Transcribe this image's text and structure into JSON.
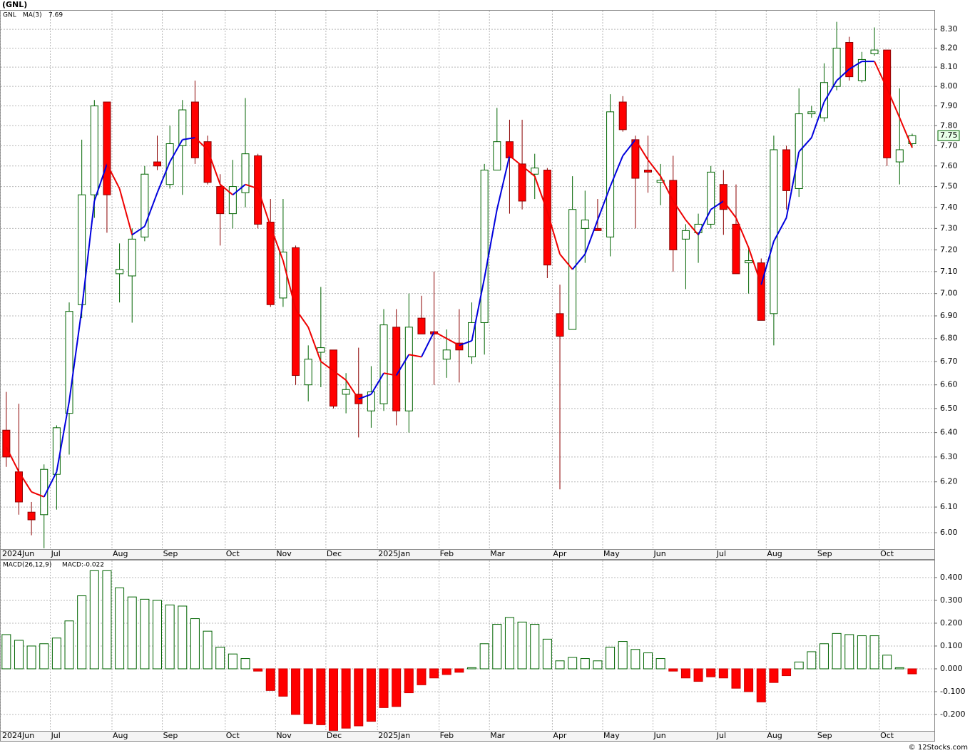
{
  "header": {
    "title": "(GNL)",
    "footer": "© 12Stocks.com"
  },
  "chart_data": [
    {
      "type": "candlestick",
      "symbol": "GNL",
      "log_scale": true,
      "grid": true,
      "up_color": "#006400",
      "down_color": "#ff0000",
      "open": [
        6.41,
        6.24,
        6.08,
        6.07,
        6.23,
        6.48,
        6.95,
        7.46,
        7.92,
        7.09,
        7.08,
        7.26,
        7.62,
        7.51,
        7.7,
        7.92,
        7.72,
        7.5,
        7.37,
        7.47,
        7.65,
        7.33,
        6.98,
        7.21,
        6.6,
        6.74,
        6.75,
        6.56,
        6.56,
        6.49,
        6.52,
        6.85,
        6.49,
        6.89,
        6.83,
        6.71,
        6.78,
        6.72,
        6.87,
        7.58,
        7.72,
        7.61,
        7.56,
        7.58,
        6.91,
        6.84,
        7.3,
        7.3,
        7.26,
        7.92,
        7.73,
        7.58,
        7.52,
        7.53,
        7.25,
        7.28,
        7.32,
        7.51,
        7.32,
        7.14,
        7.14,
        6.91,
        7.68,
        7.49,
        7.86,
        7.84,
        8.0,
        8.23,
        8.03,
        8.17,
        8.19,
        7.62,
        7.71
      ],
      "high": [
        6.57,
        6.52,
        6.12,
        6.27,
        6.43,
        6.96,
        7.73,
        7.93,
        7.92,
        7.23,
        7.3,
        7.6,
        7.75,
        7.8,
        7.93,
        8.03,
        7.75,
        7.56,
        7.63,
        7.94,
        7.66,
        7.44,
        7.44,
        7.22,
        6.77,
        7.03,
        6.75,
        6.65,
        6.76,
        6.68,
        6.93,
        6.93,
        7.0,
        6.99,
        7.1,
        6.84,
        6.93,
        6.96,
        7.61,
        7.89,
        7.83,
        7.83,
        7.66,
        7.59,
        7.04,
        7.55,
        7.48,
        7.44,
        7.96,
        7.95,
        7.75,
        7.75,
        7.61,
        7.65,
        7.32,
        7.37,
        7.6,
        7.58,
        7.51,
        7.21,
        7.16,
        7.75,
        7.7,
        7.99,
        7.9,
        8.12,
        8.34,
        8.26,
        8.18,
        8.31,
        8.19,
        7.99,
        7.76
      ],
      "low": [
        6.26,
        6.07,
        5.99,
        5.94,
        6.09,
        6.31,
        6.89,
        7.35,
        7.28,
        6.96,
        6.87,
        7.24,
        7.58,
        7.49,
        7.46,
        7.61,
        7.51,
        7.22,
        7.3,
        7.4,
        7.3,
        6.94,
        6.94,
        6.6,
        6.53,
        6.59,
        6.5,
        6.48,
        6.38,
        6.42,
        6.49,
        6.43,
        6.4,
        6.82,
        6.6,
        6.63,
        6.61,
        6.69,
        6.73,
        7.58,
        7.37,
        7.39,
        7.44,
        7.07,
        6.17,
        6.84,
        7.14,
        7.29,
        7.17,
        7.77,
        7.3,
        7.47,
        7.41,
        7.1,
        7.02,
        7.14,
        7.3,
        7.27,
        7.09,
        7.0,
        6.88,
        6.77,
        7.39,
        7.45,
        7.84,
        7.82,
        7.98,
        8.03,
        8.02,
        8.16,
        7.6,
        7.51,
        7.69
      ],
      "close": [
        6.3,
        6.12,
        6.05,
        6.25,
        6.42,
        6.92,
        7.46,
        7.9,
        7.46,
        7.11,
        7.25,
        7.56,
        7.6,
        7.71,
        7.88,
        7.64,
        7.52,
        7.37,
        7.5,
        7.66,
        7.32,
        6.95,
        7.19,
        6.64,
        6.71,
        6.76,
        6.51,
        6.58,
        6.52,
        6.57,
        6.86,
        6.49,
        6.85,
        6.82,
        6.82,
        6.75,
        6.75,
        6.87,
        7.58,
        7.72,
        7.64,
        7.43,
        7.59,
        7.13,
        6.81,
        7.39,
        7.34,
        7.29,
        7.87,
        7.78,
        7.54,
        7.57,
        7.53,
        7.2,
        7.29,
        7.32,
        7.57,
        7.39,
        7.09,
        7.15,
        6.88,
        7.68,
        7.48,
        7.86,
        7.87,
        8.02,
        8.2,
        8.05,
        8.14,
        8.19,
        7.64,
        7.68,
        7.75
      ],
      "ma": {
        "name": "MA(3)",
        "up_color": "#0000dd",
        "down_color": "#ee0000",
        "values": [
          6.34,
          6.24,
          6.16,
          6.14,
          6.24,
          6.53,
          6.93,
          7.43,
          7.61,
          7.49,
          7.27,
          7.31,
          7.47,
          7.62,
          7.73,
          7.74,
          7.68,
          7.51,
          7.46,
          7.51,
          7.49,
          7.31,
          7.15,
          6.93,
          6.85,
          6.7,
          6.66,
          6.62,
          6.54,
          6.56,
          6.65,
          6.64,
          6.73,
          6.72,
          6.83,
          6.8,
          6.77,
          6.79,
          7.07,
          7.39,
          7.65,
          7.6,
          7.55,
          7.38,
          7.18,
          7.11,
          7.18,
          7.34,
          7.5,
          7.65,
          7.73,
          7.63,
          7.55,
          7.43,
          7.34,
          7.27,
          7.39,
          7.43,
          7.35,
          7.21,
          7.04,
          7.24,
          7.35,
          7.67,
          7.74,
          7.92,
          8.03,
          8.09,
          8.13,
          8.13,
          7.99,
          7.84,
          7.69
        ]
      },
      "xlim": [
        -0.5,
        73.76
      ],
      "xticks": [
        {
          "value": -0.5,
          "label": "2024Jun"
        },
        {
          "value": 3.5,
          "label": "Jul"
        },
        {
          "value": 8.4,
          "label": "Aug"
        },
        {
          "value": 12.4,
          "label": "Sep"
        },
        {
          "value": 17.4,
          "label": "Oct"
        },
        {
          "value": 21.4,
          "label": "Nov"
        },
        {
          "value": 25.4,
          "label": "Dec"
        },
        {
          "value": 29.5,
          "label": "2025Jan"
        },
        {
          "value": 34.4,
          "label": "Feb"
        },
        {
          "value": 38.4,
          "label": "Mar"
        },
        {
          "value": 43.4,
          "label": "Apr"
        },
        {
          "value": 47.4,
          "label": "May"
        },
        {
          "value": 51.4,
          "label": "Jun"
        },
        {
          "value": 56.4,
          "label": "Jul"
        },
        {
          "value": 60.4,
          "label": "Aug"
        },
        {
          "value": 64.4,
          "label": "Sep"
        },
        {
          "value": 69.4,
          "label": "Oct"
        }
      ],
      "ylim": [
        5.937,
        8.404
      ],
      "yticks": [
        {
          "value": 6,
          "label": "6.00"
        },
        {
          "value": 6.1,
          "label": "6.10"
        },
        {
          "value": 6.2,
          "label": "6.20"
        },
        {
          "value": 6.3,
          "label": "6.30"
        },
        {
          "value": 6.4,
          "label": "6.40"
        },
        {
          "value": 6.5,
          "label": "6.50"
        },
        {
          "value": 6.6,
          "label": "6.60"
        },
        {
          "value": 6.7,
          "label": "6.70"
        },
        {
          "value": 6.8,
          "label": "6.80"
        },
        {
          "value": 6.9,
          "label": "6.90"
        },
        {
          "value": 7,
          "label": "7.00"
        },
        {
          "value": 7.1,
          "label": "7.10"
        },
        {
          "value": 7.2,
          "label": "7.20"
        },
        {
          "value": 7.3,
          "label": "7.30"
        },
        {
          "value": 7.4,
          "label": "7.40"
        },
        {
          "value": 7.5,
          "label": "7.50"
        },
        {
          "value": 7.6,
          "label": "7.60"
        },
        {
          "value": 7.7,
          "label": "7.70"
        },
        {
          "value": 7.8,
          "label": "7.80"
        },
        {
          "value": 7.9,
          "label": "7.90"
        },
        {
          "value": 8,
          "label": "8.00"
        },
        {
          "value": 8.1,
          "label": "8.10"
        },
        {
          "value": 8.2,
          "label": "8.20"
        },
        {
          "value": 8.3,
          "label": "8.30"
        }
      ]
    },
    {
      "type": "bar",
      "name": "MACD(26,12,9)",
      "value_prefix": "MACD:",
      "grid": true,
      "up_color": "#006400",
      "down_color": "#ff0000",
      "values": [
        0.15,
        0.125,
        0.1,
        0.11,
        0.135,
        0.21,
        0.32,
        0.43,
        0.43,
        0.355,
        0.315,
        0.305,
        0.3,
        0.28,
        0.275,
        0.22,
        0.165,
        0.095,
        0.065,
        0.045,
        -0.01,
        -0.095,
        -0.12,
        -0.2,
        -0.24,
        -0.245,
        -0.27,
        -0.26,
        -0.25,
        -0.23,
        -0.17,
        -0.165,
        -0.105,
        -0.07,
        -0.04,
        -0.025,
        -0.015,
        0.005,
        0.11,
        0.195,
        0.225,
        0.205,
        0.195,
        0.13,
        0.035,
        0.05,
        0.045,
        0.035,
        0.095,
        0.12,
        0.085,
        0.07,
        0.045,
        -0.01,
        -0.04,
        -0.055,
        -0.035,
        -0.04,
        -0.085,
        -0.1,
        -0.145,
        -0.06,
        -0.03,
        0.03,
        0.075,
        0.11,
        0.155,
        0.15,
        0.145,
        0.145,
        0.06,
        0.005,
        -0.022
      ],
      "ylim": [
        -0.272,
        0.478
      ],
      "yticks": [
        {
          "value": -0.2,
          "label": "-0.200"
        },
        {
          "value": -0.1,
          "label": "-0.100"
        },
        {
          "value": 0,
          "label": "0.000"
        },
        {
          "value": 0.1,
          "label": "0.100"
        },
        {
          "value": 0.2,
          "label": "0.200"
        },
        {
          "value": 0.3,
          "label": "0.300"
        },
        {
          "value": 0.4,
          "label": "0.400"
        }
      ]
    }
  ]
}
